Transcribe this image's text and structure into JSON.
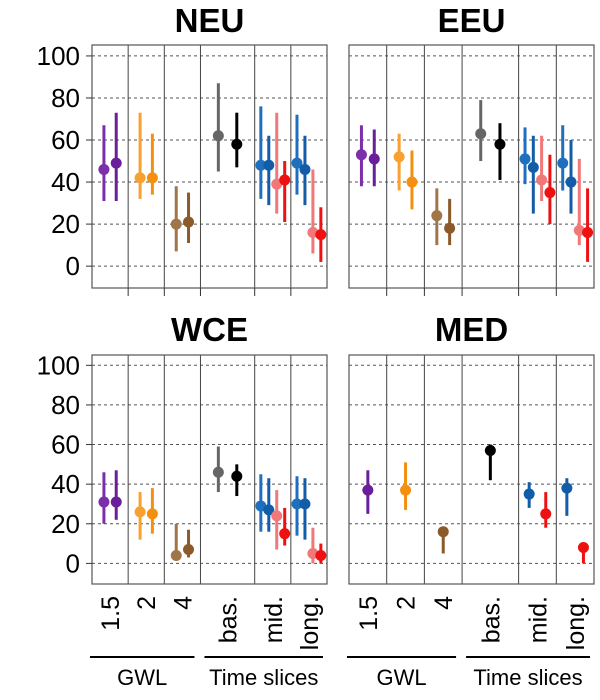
{
  "chart_data": {
    "type": "scatter",
    "categories": [
      "1.5",
      "2",
      "4",
      "bas.",
      "mid.",
      "long."
    ],
    "group_labels": [
      "GWL",
      "Time slices"
    ],
    "ylim": [
      0,
      100
    ],
    "yticks": [
      0,
      20,
      40,
      60,
      80,
      100
    ],
    "grid": "dashed horizontal",
    "panels": [
      {
        "title": "NEU",
        "points": [
          {
            "category": "1.5",
            "color": "#7b2fa8",
            "value": 46,
            "low": 31,
            "high": 67
          },
          {
            "category": "1.5",
            "color": "#6a1f9a",
            "value": 49,
            "low": 31,
            "high": 73
          },
          {
            "category": "2",
            "color": "#f8a030",
            "value": 42,
            "low": 32,
            "high": 73
          },
          {
            "category": "2",
            "color": "#f49010",
            "value": 42,
            "low": 34,
            "high": 63
          },
          {
            "category": "4",
            "color": "#a07548",
            "value": 20,
            "low": 7,
            "high": 38
          },
          {
            "category": "4",
            "color": "#8b5a2b",
            "value": 21,
            "low": 11,
            "high": 35
          },
          {
            "category": "bas.",
            "color": "#666666",
            "value": 62,
            "low": 45,
            "high": 87
          },
          {
            "category": "bas.",
            "color": "#000000",
            "value": 58,
            "low": 47,
            "high": 73
          },
          {
            "category": "mid.",
            "color": "#1f6fbf",
            "value": 48,
            "low": 32,
            "high": 76
          },
          {
            "category": "mid.",
            "color": "#135da8",
            "value": 48,
            "low": 29,
            "high": 62
          },
          {
            "category": "mid.",
            "color": "#f07878",
            "value": 39,
            "low": 25,
            "high": 73
          },
          {
            "category": "mid.",
            "color": "#ee1111",
            "value": 41,
            "low": 21,
            "high": 50
          },
          {
            "category": "long.",
            "color": "#1f6fbf",
            "value": 49,
            "low": 34,
            "high": 72
          },
          {
            "category": "long.",
            "color": "#135da8",
            "value": 46,
            "low": 29,
            "high": 62
          },
          {
            "category": "long.",
            "color": "#f07878",
            "value": 16,
            "low": 6,
            "high": 46
          },
          {
            "category": "long.",
            "color": "#ee1111",
            "value": 15,
            "low": 2,
            "high": 28
          }
        ]
      },
      {
        "title": "EEU",
        "points": [
          {
            "category": "1.5",
            "color": "#7b2fa8",
            "value": 53,
            "low": 38,
            "high": 67
          },
          {
            "category": "1.5",
            "color": "#6a1f9a",
            "value": 51,
            "low": 38,
            "high": 65
          },
          {
            "category": "2",
            "color": "#f8a030",
            "value": 52,
            "low": 36,
            "high": 63
          },
          {
            "category": "2",
            "color": "#f49010",
            "value": 40,
            "low": 27,
            "high": 55
          },
          {
            "category": "4",
            "color": "#a07548",
            "value": 24,
            "low": 10,
            "high": 37
          },
          {
            "category": "4",
            "color": "#8b5a2b",
            "value": 18,
            "low": 10,
            "high": 32
          },
          {
            "category": "bas.",
            "color": "#666666",
            "value": 63,
            "low": 50,
            "high": 79
          },
          {
            "category": "bas.",
            "color": "#000000",
            "value": 58,
            "low": 41,
            "high": 68
          },
          {
            "category": "mid.",
            "color": "#1f6fbf",
            "value": 51,
            "low": 39,
            "high": 66
          },
          {
            "category": "mid.",
            "color": "#135da8",
            "value": 47,
            "low": 25,
            "high": 62
          },
          {
            "category": "mid.",
            "color": "#f07878",
            "value": 41,
            "low": 31,
            "high": 62
          },
          {
            "category": "mid.",
            "color": "#ee1111",
            "value": 35,
            "low": 20,
            "high": 53
          },
          {
            "category": "long.",
            "color": "#1f6fbf",
            "value": 49,
            "low": 36,
            "high": 67
          },
          {
            "category": "long.",
            "color": "#135da8",
            "value": 40,
            "low": 25,
            "high": 60
          },
          {
            "category": "long.",
            "color": "#f07878",
            "value": 17,
            "low": 10,
            "high": 51
          },
          {
            "category": "long.",
            "color": "#ee1111",
            "value": 16,
            "low": 2,
            "high": 37
          }
        ]
      },
      {
        "title": "WCE",
        "points": [
          {
            "category": "1.5",
            "color": "#7b2fa8",
            "value": 31,
            "low": 20,
            "high": 46
          },
          {
            "category": "1.5",
            "color": "#6a1f9a",
            "value": 31,
            "low": 22,
            "high": 47
          },
          {
            "category": "2",
            "color": "#f8a030",
            "value": 26,
            "low": 12,
            "high": 36
          },
          {
            "category": "2",
            "color": "#f49010",
            "value": 25,
            "low": 15,
            "high": 38
          },
          {
            "category": "4",
            "color": "#a07548",
            "value": 4,
            "low": 2,
            "high": 20
          },
          {
            "category": "4",
            "color": "#8b5a2b",
            "value": 7,
            "low": 3,
            "high": 17
          },
          {
            "category": "bas.",
            "color": "#666666",
            "value": 46,
            "low": 36,
            "high": 59
          },
          {
            "category": "bas.",
            "color": "#000000",
            "value": 44,
            "low": 34,
            "high": 50
          },
          {
            "category": "mid.",
            "color": "#1f6fbf",
            "value": 29,
            "low": 16,
            "high": 45
          },
          {
            "category": "mid.",
            "color": "#135da8",
            "value": 27,
            "low": 16,
            "high": 43
          },
          {
            "category": "mid.",
            "color": "#f07878",
            "value": 24,
            "low": 7,
            "high": 37
          },
          {
            "category": "mid.",
            "color": "#ee1111",
            "value": 15,
            "low": 9,
            "high": 28
          },
          {
            "category": "long.",
            "color": "#1f6fbf",
            "value": 30,
            "low": 14,
            "high": 44
          },
          {
            "category": "long.",
            "color": "#135da8",
            "value": 30,
            "low": 12,
            "high": 43
          },
          {
            "category": "long.",
            "color": "#f07878",
            "value": 5,
            "low": 0,
            "high": 18
          },
          {
            "category": "long.",
            "color": "#ee1111",
            "value": 4,
            "low": 0,
            "high": 10
          }
        ]
      },
      {
        "title": "MED",
        "points": [
          {
            "category": "1.5",
            "color": "#6a1f9a",
            "value": 37,
            "low": 25,
            "high": 47
          },
          {
            "category": "2",
            "color": "#f49010",
            "value": 37,
            "low": 27,
            "high": 51
          },
          {
            "category": "4",
            "color": "#8b5a2b",
            "value": 16,
            "low": 5,
            "high": 18
          },
          {
            "category": "bas.",
            "color": "#000000",
            "value": 57,
            "low": 42,
            "high": 60
          },
          {
            "category": "mid.",
            "color": "#135da8",
            "value": 35,
            "low": 28,
            "high": 41
          },
          {
            "category": "mid.",
            "color": "#ee1111",
            "value": 25,
            "low": 18,
            "high": 36
          },
          {
            "category": "long.",
            "color": "#135da8",
            "value": 38,
            "low": 24,
            "high": 43
          },
          {
            "category": "long.",
            "color": "#ee1111",
            "value": 8,
            "low": 0,
            "high": 9
          }
        ]
      }
    ]
  }
}
